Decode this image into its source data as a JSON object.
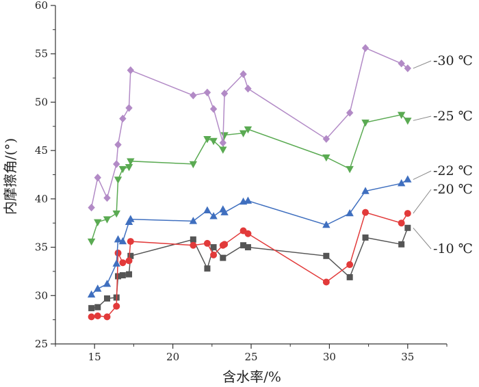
{
  "chart_data": {
    "type": "line",
    "title": "",
    "xlabel": "含水率/%",
    "ylabel": "内摩擦角/(°)",
    "xlim": [
      12.5,
      37.5
    ],
    "ylim": [
      25,
      60
    ],
    "xticks": [
      15,
      20,
      25,
      30,
      35
    ],
    "yticks": [
      25,
      30,
      35,
      40,
      45,
      50,
      55,
      60
    ],
    "grid": false,
    "series": [
      {
        "name": "-10 ℃",
        "color": "#555555",
        "marker": "square",
        "x": [
          14.8,
          15.2,
          15.8,
          16.4,
          16.5,
          16.8,
          17.2,
          17.3,
          21.3,
          22.2,
          22.6,
          23.2,
          24.5,
          24.8,
          29.8,
          31.3,
          32.3,
          34.6,
          35.0
        ],
        "y": [
          28.7,
          28.8,
          29.7,
          29.8,
          32.0,
          32.1,
          32.2,
          34.1,
          35.8,
          32.8,
          35.0,
          33.9,
          35.2,
          35.0,
          34.1,
          31.9,
          36.0,
          35.3,
          37.0
        ]
      },
      {
        "name": "-20 ℃",
        "color": "#e23a3a",
        "marker": "circle",
        "x": [
          14.8,
          15.2,
          15.8,
          16.4,
          16.5,
          16.8,
          17.2,
          17.3,
          21.3,
          22.2,
          22.6,
          23.2,
          23.3,
          24.5,
          24.8,
          29.8,
          31.3,
          32.3,
          34.6,
          35.0
        ],
        "y": [
          27.8,
          27.9,
          27.8,
          28.9,
          34.4,
          33.4,
          33.6,
          35.6,
          35.2,
          35.4,
          34.2,
          35.2,
          35.3,
          36.7,
          36.4,
          31.4,
          33.2,
          38.6,
          37.5,
          38.5
        ]
      },
      {
        "name": "-22 ℃",
        "color": "#3f6fbf",
        "marker": "triangle-up",
        "x": [
          14.8,
          15.2,
          15.8,
          16.4,
          16.5,
          16.8,
          17.2,
          17.3,
          21.3,
          22.2,
          22.6,
          23.2,
          23.3,
          24.5,
          24.8,
          29.8,
          31.3,
          32.3,
          34.6,
          35.0
        ],
        "y": [
          30.1,
          30.7,
          31.2,
          33.3,
          35.8,
          35.6,
          37.6,
          37.9,
          37.7,
          38.8,
          38.2,
          38.9,
          38.6,
          39.7,
          39.8,
          37.3,
          38.5,
          40.8,
          41.6,
          42.0
        ]
      },
      {
        "name": "-25 ℃",
        "color": "#5aaa52",
        "marker": "triangle-down",
        "x": [
          14.8,
          15.2,
          15.8,
          16.4,
          16.5,
          16.8,
          17.2,
          17.3,
          21.3,
          22.2,
          22.6,
          23.2,
          23.3,
          24.5,
          24.8,
          29.8,
          31.3,
          32.3,
          34.6,
          35.0
        ],
        "y": [
          35.6,
          37.6,
          37.9,
          38.5,
          42.0,
          43.1,
          43.3,
          43.9,
          43.6,
          46.2,
          46.0,
          45.1,
          46.6,
          46.8,
          47.2,
          44.3,
          43.1,
          47.9,
          48.7,
          48.1
        ]
      },
      {
        "name": "-30 ℃",
        "color": "#b28ac6",
        "marker": "diamond",
        "x": [
          14.8,
          15.2,
          15.8,
          16.4,
          16.5,
          16.8,
          17.2,
          17.3,
          21.3,
          22.2,
          22.6,
          23.2,
          23.3,
          24.5,
          24.8,
          29.8,
          31.3,
          32.3,
          34.6,
          35.0
        ],
        "y": [
          39.1,
          42.2,
          40.1,
          43.6,
          45.6,
          48.3,
          49.4,
          53.3,
          50.7,
          51.0,
          49.3,
          45.8,
          50.9,
          52.9,
          51.4,
          46.2,
          48.9,
          55.6,
          54.0,
          53.5
        ]
      }
    ]
  }
}
